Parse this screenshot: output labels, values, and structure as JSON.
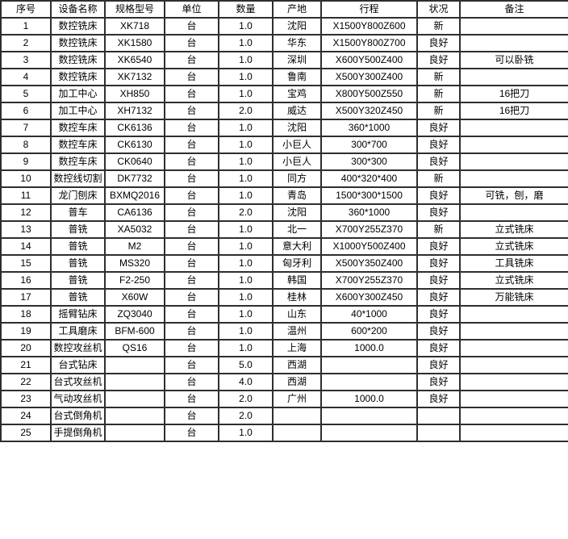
{
  "table": {
    "headers": [
      "序号",
      "设备名称",
      "规格型号",
      "单位",
      "数量",
      "产地",
      "行程",
      "状况",
      "备注"
    ],
    "column_keys": [
      "serial",
      "equipment_name",
      "spec_model",
      "unit",
      "quantity",
      "origin",
      "travel",
      "condition",
      "remarks"
    ],
    "rows": [
      [
        "1",
        "数控铣床",
        "XK718",
        "台",
        "1.0",
        "沈阳",
        "X1500Y800Z600",
        "新",
        ""
      ],
      [
        "2",
        "数控铣床",
        "XK1580",
        "台",
        "1.0",
        "华东",
        "X1500Y800Z700",
        "良好",
        ""
      ],
      [
        "3",
        "数控铣床",
        "XK6540",
        "台",
        "1.0",
        "深圳",
        "X600Y500Z400",
        "良好",
        "可以卧铣"
      ],
      [
        "4",
        "数控铣床",
        "XK7132",
        "台",
        "1.0",
        "鲁南",
        "X500Y300Z400",
        "新",
        ""
      ],
      [
        "5",
        "加工中心",
        "XH850",
        "台",
        "1.0",
        "宝鸡",
        "X800Y500Z550",
        "新",
        "16把刀"
      ],
      [
        "6",
        "加工中心",
        "XH7132",
        "台",
        "2.0",
        "威达",
        "X500Y320Z450",
        "新",
        "16把刀"
      ],
      [
        "7",
        "数控车床",
        "CK6136",
        "台",
        "1.0",
        "沈阳",
        "360*1000",
        "良好",
        ""
      ],
      [
        "8",
        "数控车床",
        "CK6130",
        "台",
        "1.0",
        "小巨人",
        "300*700",
        "良好",
        ""
      ],
      [
        "9",
        "数控车床",
        "CK0640",
        "台",
        "1.0",
        "小巨人",
        "300*300",
        "良好",
        ""
      ],
      [
        "10",
        "数控线切割",
        "DK7732",
        "台",
        "1.0",
        "同方",
        "400*320*400",
        "新",
        ""
      ],
      [
        "11",
        "龙门刨床",
        "BXMQ2016",
        "台",
        "1.0",
        "青岛",
        "1500*300*1500",
        "良好",
        "可铣，刨，磨"
      ],
      [
        "12",
        "普车",
        "CA6136",
        "台",
        "2.0",
        "沈阳",
        "360*1000",
        "良好",
        ""
      ],
      [
        "13",
        "普铣",
        "XA5032",
        "台",
        "1.0",
        "北一",
        "X700Y255Z370",
        "新",
        "立式铣床"
      ],
      [
        "14",
        "普铣",
        "M2",
        "台",
        "1.0",
        "意大利",
        "X1000Y500Z400",
        "良好",
        "立式铣床"
      ],
      [
        "15",
        "普铣",
        "MS320",
        "台",
        "1.0",
        "匈牙利",
        "X500Y350Z400",
        "良好",
        "工具铣床"
      ],
      [
        "16",
        "普铣",
        "F2-250",
        "台",
        "1.0",
        "韩国",
        "X700Y255Z370",
        "良好",
        "立式铣床"
      ],
      [
        "17",
        "普铣",
        "X60W",
        "台",
        "1.0",
        "桂林",
        "X600Y300Z450",
        "良好",
        "万能铣床"
      ],
      [
        "18",
        "摇臂钻床",
        "ZQ3040",
        "台",
        "1.0",
        "山东",
        "40*1000",
        "良好",
        ""
      ],
      [
        "19",
        "工具磨床",
        "BFM-600",
        "台",
        "1.0",
        "温州",
        "600*200",
        "良好",
        ""
      ],
      [
        "20",
        "数控攻丝机",
        "QS16",
        "台",
        "1.0",
        "上海",
        "1000.0",
        "良好",
        ""
      ],
      [
        "21",
        "台式钻床",
        "",
        "台",
        "5.0",
        "西湖",
        "",
        "良好",
        ""
      ],
      [
        "22",
        "台式攻丝机",
        "",
        "台",
        "4.0",
        "西湖",
        "",
        "良好",
        ""
      ],
      [
        "23",
        "气动攻丝机",
        "",
        "台",
        "2.0",
        "广州",
        "1000.0",
        "良好",
        ""
      ],
      [
        "24",
        "台式倒角机",
        "",
        "台",
        "2.0",
        "",
        "",
        "",
        ""
      ],
      [
        "25",
        "手提倒角机",
        "",
        "台",
        "1.0",
        "",
        "",
        "",
        ""
      ]
    ]
  },
  "colors": {
    "border": "#2e2e2e",
    "text": "#000000",
    "background": "#ffffff"
  }
}
